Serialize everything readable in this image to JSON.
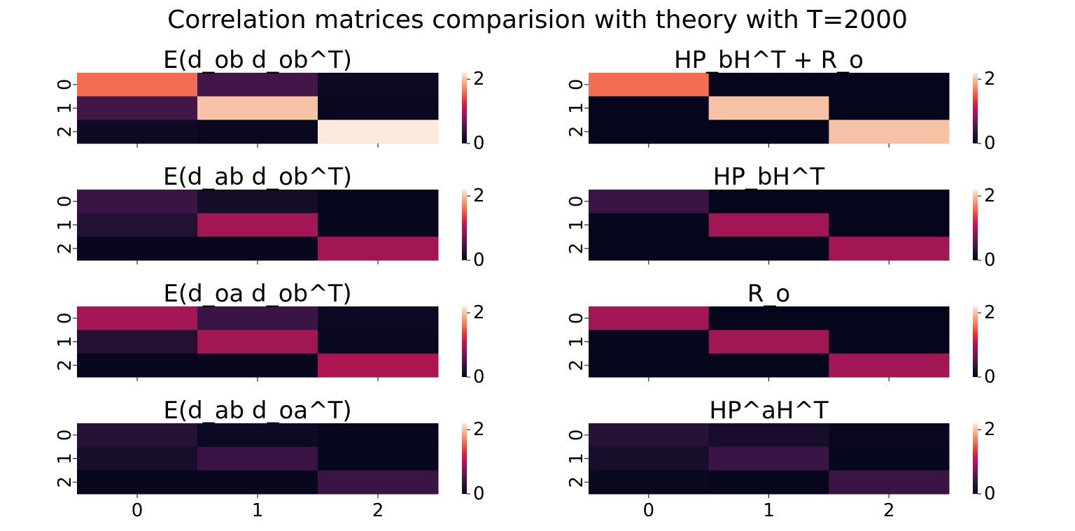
{
  "figure": {
    "suptitle": "Correlation matrices comparision with theory with T=2000"
  },
  "chart_data": [
    {
      "type": "heatmap",
      "title": "E(d_ob d_ob^T)",
      "x_ticks": [
        "0",
        "1",
        "2"
      ],
      "y_ticks": [
        "0",
        "1",
        "2"
      ],
      "values": [
        [
          1.6,
          0.45,
          0.1
        ],
        [
          0.45,
          2.0,
          0.05
        ],
        [
          0.1,
          0.05,
          2.2
        ]
      ],
      "colorbar": {
        "min": 0,
        "max": 2.2,
        "ticks": [
          "0",
          "2"
        ]
      }
    },
    {
      "type": "heatmap",
      "title": "HP_bH^T + R_o",
      "x_ticks": [
        "0",
        "1",
        "2"
      ],
      "y_ticks": [
        "0",
        "1",
        "2"
      ],
      "values": [
        [
          1.6,
          0.02,
          0.02
        ],
        [
          0.02,
          2.0,
          0.02
        ],
        [
          0.02,
          0.02,
          2.0
        ]
      ],
      "colorbar": {
        "min": 0,
        "max": 2.2,
        "ticks": [
          "0",
          "2"
        ]
      }
    },
    {
      "type": "heatmap",
      "title": "E(d_ab d_ob^T)",
      "x_ticks": [
        "0",
        "1",
        "2"
      ],
      "y_ticks": [
        "0",
        "1",
        "2"
      ],
      "values": [
        [
          0.4,
          0.15,
          0.03
        ],
        [
          0.25,
          0.95,
          0.03
        ],
        [
          0.04,
          0.04,
          0.95
        ]
      ],
      "colorbar": {
        "min": 0,
        "max": 2.2,
        "ticks": [
          "0",
          "2"
        ]
      }
    },
    {
      "type": "heatmap",
      "title": "HP_bH^T",
      "x_ticks": [
        "0",
        "1",
        "2"
      ],
      "y_ticks": [
        "0",
        "1",
        "2"
      ],
      "values": [
        [
          0.4,
          0.02,
          0.02
        ],
        [
          0.02,
          0.95,
          0.02
        ],
        [
          0.02,
          0.02,
          0.95
        ]
      ],
      "colorbar": {
        "min": 0,
        "max": 2.2,
        "ticks": [
          "0",
          "2"
        ]
      }
    },
    {
      "type": "heatmap",
      "title": "E(d_oa d_ob^T)",
      "x_ticks": [
        "0",
        "1",
        "2"
      ],
      "y_ticks": [
        "0",
        "1",
        "2"
      ],
      "values": [
        [
          0.95,
          0.4,
          0.08
        ],
        [
          0.25,
          0.95,
          0.05
        ],
        [
          0.04,
          0.04,
          1.0
        ]
      ],
      "colorbar": {
        "min": 0,
        "max": 2.2,
        "ticks": [
          "0",
          "2"
        ]
      }
    },
    {
      "type": "heatmap",
      "title": "R_o",
      "x_ticks": [
        "0",
        "1",
        "2"
      ],
      "y_ticks": [
        "0",
        "1",
        "2"
      ],
      "values": [
        [
          0.95,
          0.02,
          0.02
        ],
        [
          0.02,
          0.95,
          0.02
        ],
        [
          0.02,
          0.02,
          0.95
        ]
      ],
      "colorbar": {
        "min": 0,
        "max": 2.2,
        "ticks": [
          "0",
          "2"
        ]
      }
    },
    {
      "type": "heatmap",
      "title": "E(d_ab d_oa^T)",
      "x_ticks": [
        "0",
        "1",
        "2"
      ],
      "y_ticks": [
        "0",
        "1",
        "2"
      ],
      "values": [
        [
          0.28,
          0.08,
          0.03
        ],
        [
          0.18,
          0.4,
          0.03
        ],
        [
          0.04,
          0.04,
          0.4
        ]
      ],
      "colorbar": {
        "min": 0,
        "max": 2.2,
        "ticks": [
          "0",
          "2"
        ]
      }
    },
    {
      "type": "heatmap",
      "title": "HP^aH^T",
      "x_ticks": [
        "0",
        "1",
        "2"
      ],
      "y_ticks": [
        "0",
        "1",
        "2"
      ],
      "values": [
        [
          0.28,
          0.18,
          0.05
        ],
        [
          0.18,
          0.4,
          0.03
        ],
        [
          0.05,
          0.03,
          0.4
        ]
      ],
      "colorbar": {
        "min": 0,
        "max": 2.2,
        "ticks": [
          "0",
          "2"
        ]
      }
    }
  ]
}
